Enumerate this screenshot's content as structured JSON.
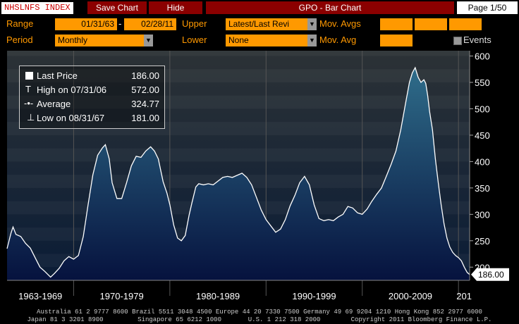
{
  "header": {
    "ticker": "NHSLNFS INDEX",
    "save_chart": "Save Chart",
    "hide": "Hide",
    "title": "GPO - Bar Chart",
    "page": "Page 1/50"
  },
  "controls": {
    "range_label": "Range",
    "range_start": "01/31/63",
    "range_sep": "-",
    "range_end": "02/28/11",
    "upper_label": "Upper",
    "upper_value": "Latest/Last Revi",
    "mov_avgs_label": "Mov. Avgs",
    "period_label": "Period",
    "period_value": "Monthly",
    "lower_label": "Lower",
    "lower_value": "None",
    "mov_avg_label": "Mov. Avg",
    "events_label": "Events"
  },
  "legend": {
    "last_label": "Last Price",
    "last_value": "186.00",
    "high_label": "High on 07/31/06",
    "high_value": "572.00",
    "avg_label": "Average",
    "avg_value": "324.77",
    "low_label": "Low on 08/31/67",
    "low_value": "181.00"
  },
  "last_price_tag": "186.00",
  "footer": {
    "line1": "Australia 61 2 9777 8600 Brazil 5511 3048 4500 Europe 44 20 7330 7500 Germany 49 69 9204 1210 Hong Kong 852 2977 6000",
    "line2": "Japan 81 3 3201 8900         Singapore 65 6212 1000       U.S. 1 212 318 2000        Copyright 2011 Bloomberg Finance L.P."
  },
  "colors": {
    "orange": "#ff9900",
    "header_red": "#8b0000",
    "area_top": "#2f6d8a",
    "area_bottom": "#06123e"
  },
  "chart_data": {
    "type": "area",
    "ylim": [
      175,
      610
    ],
    "yticks": [
      200,
      250,
      300,
      350,
      400,
      450,
      500,
      550,
      600
    ],
    "x_range": [
      1963.08,
      2011.16
    ],
    "decade_labels": [
      "1963-1969",
      "1970-1979",
      "1980-1989",
      "1990-1999",
      "2000-2009",
      "201"
    ],
    "decade_bounds": [
      1963.08,
      1970.0,
      1980.0,
      1990.0,
      2000.0,
      2010.0,
      2011.16
    ],
    "series": [
      {
        "points": [
          [
            1963.08,
            235
          ],
          [
            1963.5,
            265
          ],
          [
            1963.7,
            276
          ],
          [
            1964.0,
            262
          ],
          [
            1964.5,
            258
          ],
          [
            1965.0,
            245
          ],
          [
            1965.5,
            236
          ],
          [
            1966.0,
            218
          ],
          [
            1966.5,
            200
          ],
          [
            1967.0,
            192
          ],
          [
            1967.6,
            181
          ],
          [
            1968.0,
            188
          ],
          [
            1968.5,
            198
          ],
          [
            1969.0,
            212
          ],
          [
            1969.5,
            220
          ],
          [
            1970.0,
            215
          ],
          [
            1970.5,
            222
          ],
          [
            1971.0,
            258
          ],
          [
            1971.5,
            318
          ],
          [
            1972.0,
            375
          ],
          [
            1972.5,
            412
          ],
          [
            1973.0,
            426
          ],
          [
            1973.3,
            432
          ],
          [
            1973.7,
            405
          ],
          [
            1974.0,
            360
          ],
          [
            1974.5,
            330
          ],
          [
            1975.0,
            330
          ],
          [
            1975.5,
            360
          ],
          [
            1976.0,
            392
          ],
          [
            1976.5,
            410
          ],
          [
            1977.0,
            408
          ],
          [
            1977.5,
            420
          ],
          [
            1978.0,
            428
          ],
          [
            1978.4,
            420
          ],
          [
            1978.8,
            405
          ],
          [
            1979.3,
            362
          ],
          [
            1979.7,
            340
          ],
          [
            1980.0,
            318
          ],
          [
            1980.4,
            280
          ],
          [
            1980.8,
            255
          ],
          [
            1981.2,
            250
          ],
          [
            1981.6,
            260
          ],
          [
            1982.0,
            298
          ],
          [
            1982.3,
            322
          ],
          [
            1982.7,
            352
          ],
          [
            1983.0,
            358
          ],
          [
            1983.5,
            356
          ],
          [
            1984.0,
            358
          ],
          [
            1984.5,
            356
          ],
          [
            1985.0,
            363
          ],
          [
            1985.5,
            370
          ],
          [
            1986.0,
            372
          ],
          [
            1986.5,
            370
          ],
          [
            1987.0,
            374
          ],
          [
            1987.5,
            378
          ],
          [
            1988.0,
            370
          ],
          [
            1988.5,
            356
          ],
          [
            1989.0,
            332
          ],
          [
            1989.5,
            308
          ],
          [
            1990.0,
            290
          ],
          [
            1990.5,
            278
          ],
          [
            1991.0,
            266
          ],
          [
            1991.5,
            272
          ],
          [
            1992.0,
            290
          ],
          [
            1992.5,
            316
          ],
          [
            1993.0,
            336
          ],
          [
            1993.5,
            360
          ],
          [
            1994.0,
            372
          ],
          [
            1994.5,
            356
          ],
          [
            1995.0,
            318
          ],
          [
            1995.5,
            292
          ],
          [
            1996.0,
            288
          ],
          [
            1996.5,
            290
          ],
          [
            1997.0,
            288
          ],
          [
            1997.5,
            295
          ],
          [
            1998.0,
            300
          ],
          [
            1998.5,
            315
          ],
          [
            1999.0,
            312
          ],
          [
            1999.5,
            303
          ],
          [
            2000.0,
            300
          ],
          [
            2000.5,
            310
          ],
          [
            2001.0,
            325
          ],
          [
            2001.5,
            338
          ],
          [
            2002.0,
            350
          ],
          [
            2002.5,
            372
          ],
          [
            2003.0,
            395
          ],
          [
            2003.5,
            420
          ],
          [
            2004.0,
            460
          ],
          [
            2004.5,
            510
          ],
          [
            2004.9,
            550
          ],
          [
            2005.2,
            568
          ],
          [
            2005.5,
            578
          ],
          [
            2005.8,
            560
          ],
          [
            2006.1,
            550
          ],
          [
            2006.4,
            555
          ],
          [
            2006.6,
            548
          ],
          [
            2006.8,
            525
          ],
          [
            2007.0,
            495
          ],
          [
            2007.3,
            460
          ],
          [
            2007.6,
            405
          ],
          [
            2007.9,
            360
          ],
          [
            2008.2,
            318
          ],
          [
            2008.5,
            282
          ],
          [
            2008.8,
            255
          ],
          [
            2009.1,
            238
          ],
          [
            2009.4,
            228
          ],
          [
            2009.7,
            222
          ],
          [
            2010.0,
            218
          ],
          [
            2010.3,
            212
          ],
          [
            2010.6,
            200
          ],
          [
            2010.9,
            190
          ],
          [
            2011.16,
            186
          ]
        ]
      }
    ]
  }
}
